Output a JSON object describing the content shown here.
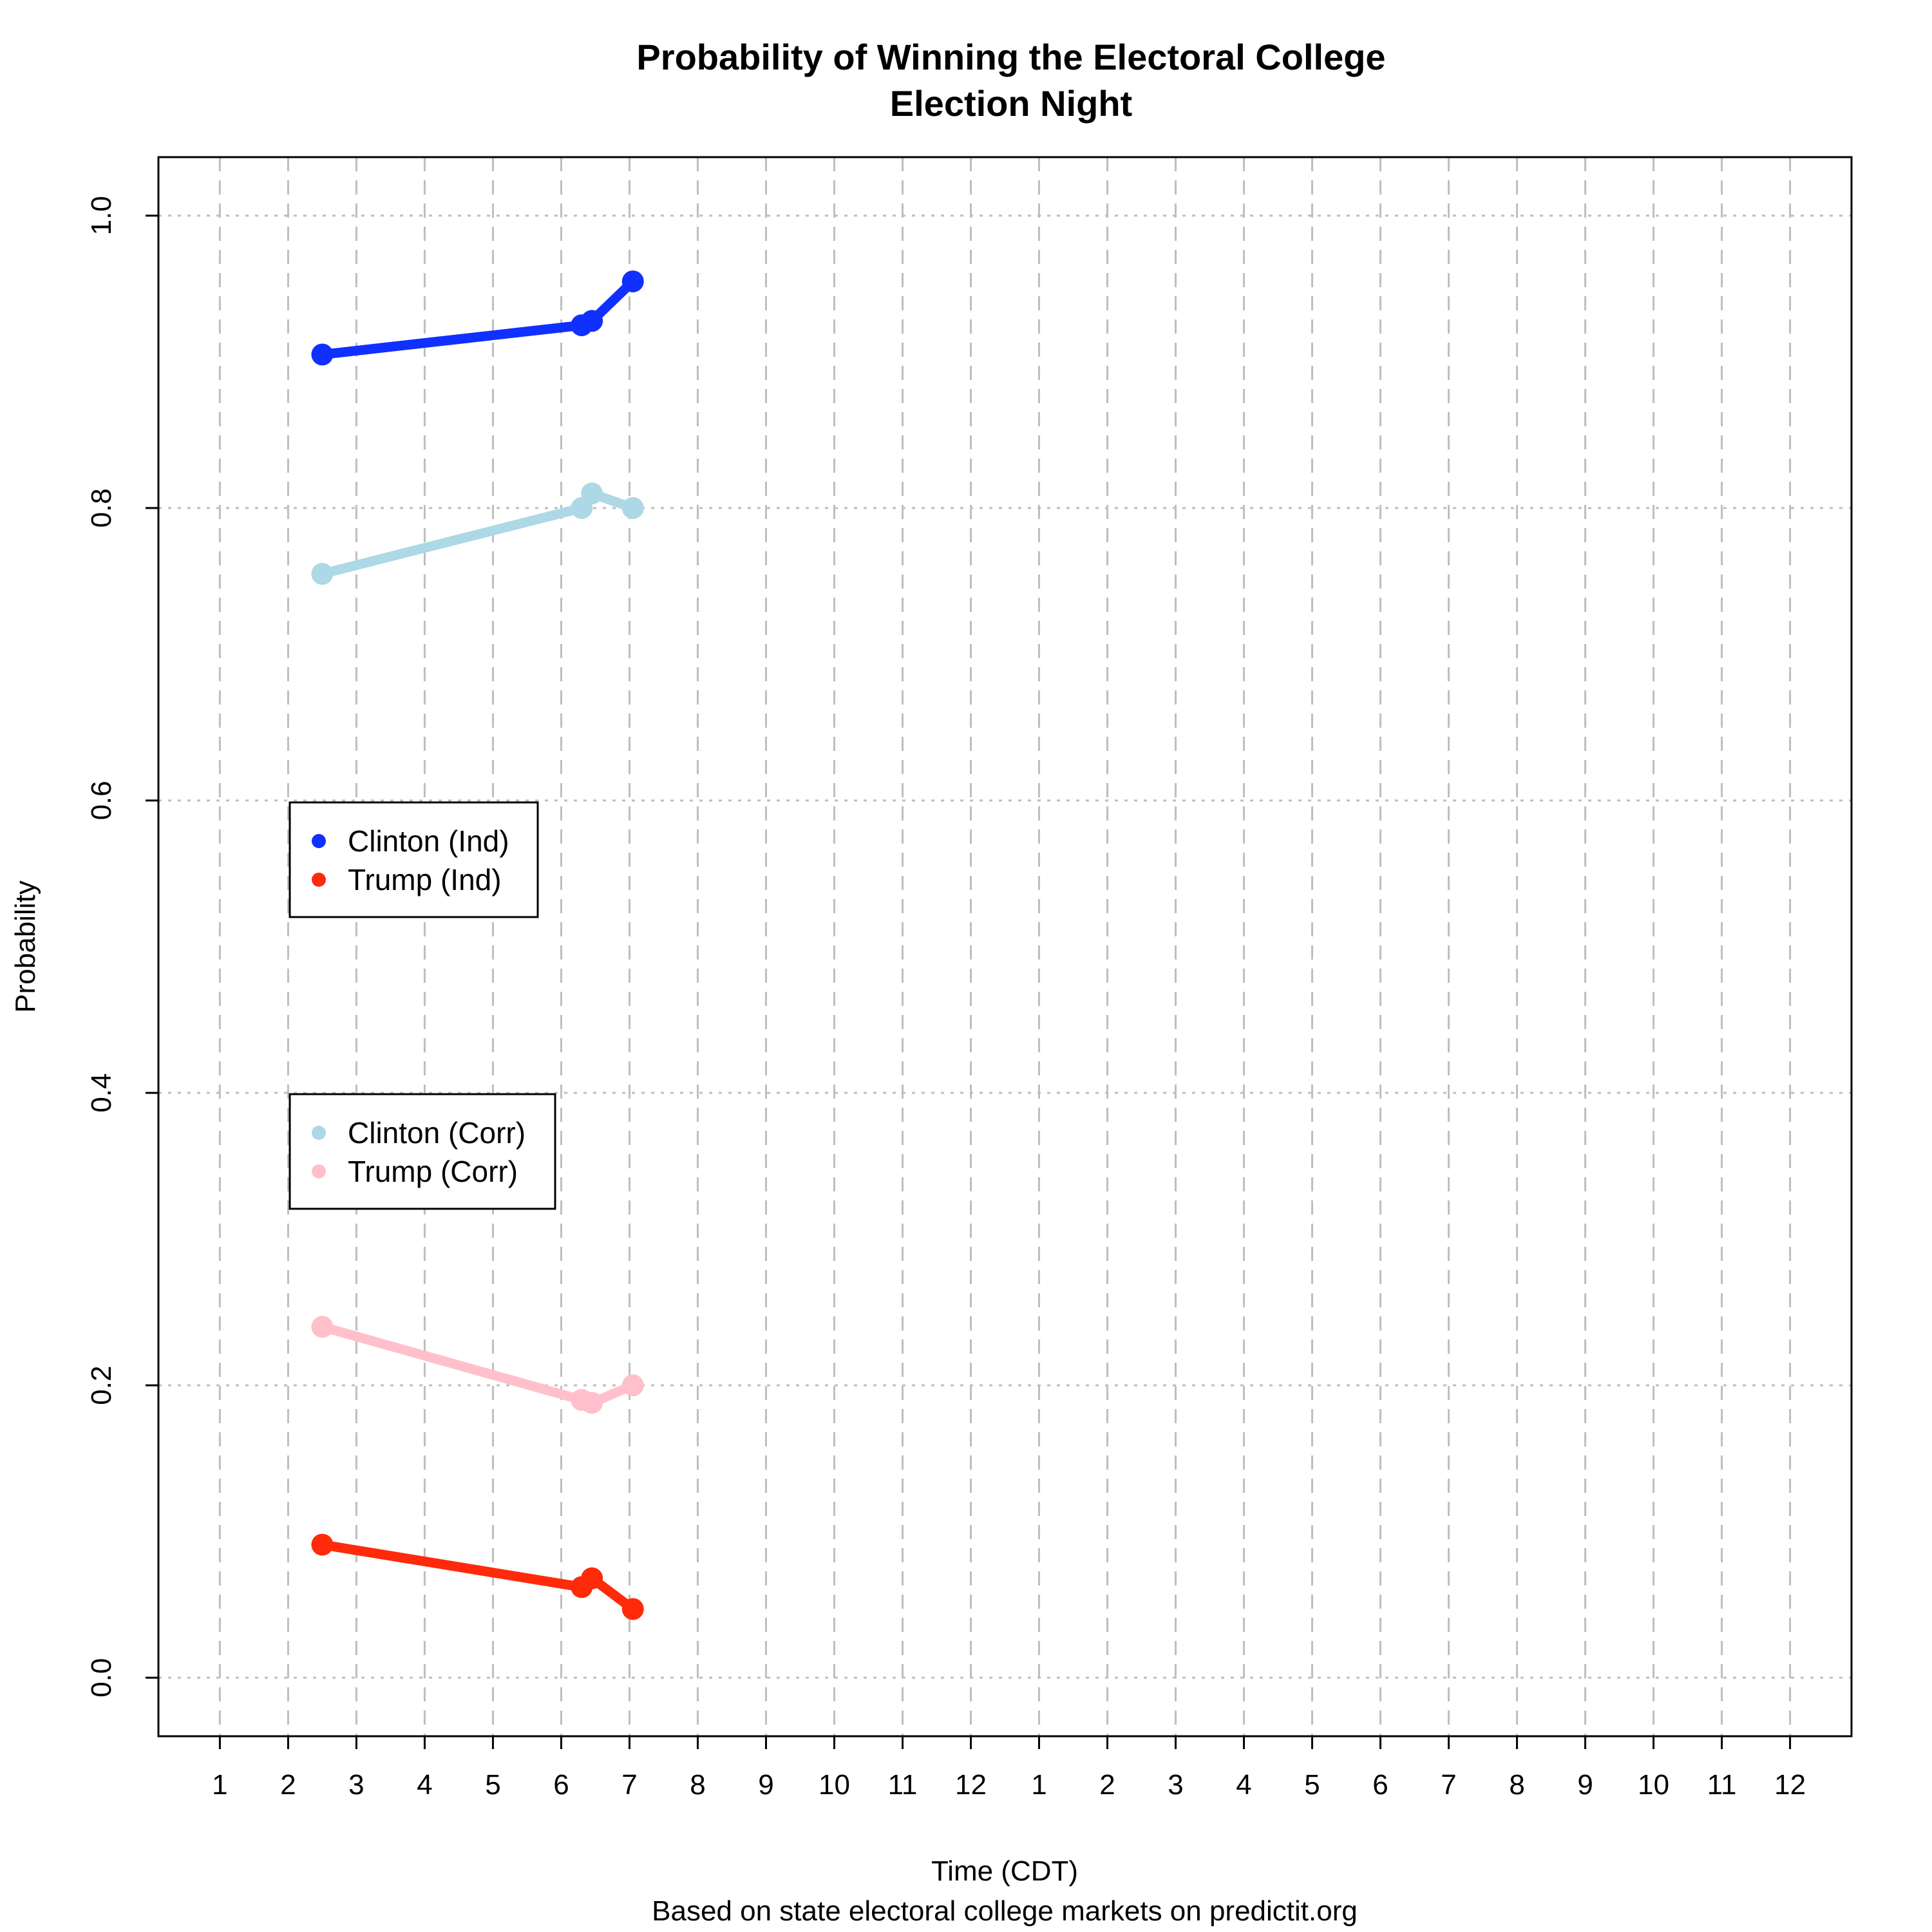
{
  "chart_data": {
    "type": "line",
    "title": "Probability of Winning the Electoral College",
    "subtitle": "Election Night",
    "xlabel": "Time (CDT)",
    "ylabel": "Probability",
    "caption": "Based on state electoral college markets on predictit.org",
    "xlim": [
      0.1,
      24.9
    ],
    "ylim": [
      -0.04,
      1.04
    ],
    "x_ticks": [
      1,
      2,
      3,
      4,
      5,
      6,
      7,
      8,
      9,
      10,
      11,
      12,
      13,
      14,
      15,
      16,
      17,
      18,
      19,
      20,
      21,
      22,
      23,
      24
    ],
    "x_tick_labels": [
      "1",
      "2",
      "3",
      "4",
      "5",
      "6",
      "7",
      "8",
      "9",
      "10",
      "11",
      "12",
      "1",
      "2",
      "3",
      "4",
      "5",
      "6",
      "7",
      "8",
      "9",
      "10",
      "11",
      "12"
    ],
    "y_ticks": [
      0.0,
      0.2,
      0.4,
      0.6,
      0.8,
      1.0
    ],
    "y_tick_labels": [
      "0.0",
      "0.2",
      "0.4",
      "0.6",
      "0.8",
      "1.0"
    ],
    "grid": true,
    "series": [
      {
        "name": "Clinton (Ind)",
        "color": "#1030ff",
        "x": [
          2.5,
          6.3,
          6.45,
          7.05
        ],
        "y": [
          0.905,
          0.925,
          0.928,
          0.955
        ]
      },
      {
        "name": "Trump (Ind)",
        "color": "#ff2a0a",
        "x": [
          2.5,
          6.3,
          6.45,
          7.05
        ],
        "y": [
          0.091,
          0.062,
          0.068,
          0.047
        ]
      },
      {
        "name": "Clinton (Corr)",
        "color": "#add8e6",
        "x": [
          2.5,
          6.3,
          6.45,
          7.05
        ],
        "y": [
          0.755,
          0.8,
          0.81,
          0.8
        ]
      },
      {
        "name": "Trump (Corr)",
        "color": "#ffc0cb",
        "x": [
          2.5,
          6.3,
          6.45,
          7.05
        ],
        "y": [
          0.24,
          0.19,
          0.188,
          0.2
        ]
      }
    ],
    "legends": [
      {
        "entries": [
          "Clinton (Ind)",
          "Trump (Ind)"
        ],
        "position": "left-middle"
      },
      {
        "entries": [
          "Clinton (Corr)",
          "Trump (Corr)"
        ],
        "position": "left-lower"
      }
    ]
  }
}
